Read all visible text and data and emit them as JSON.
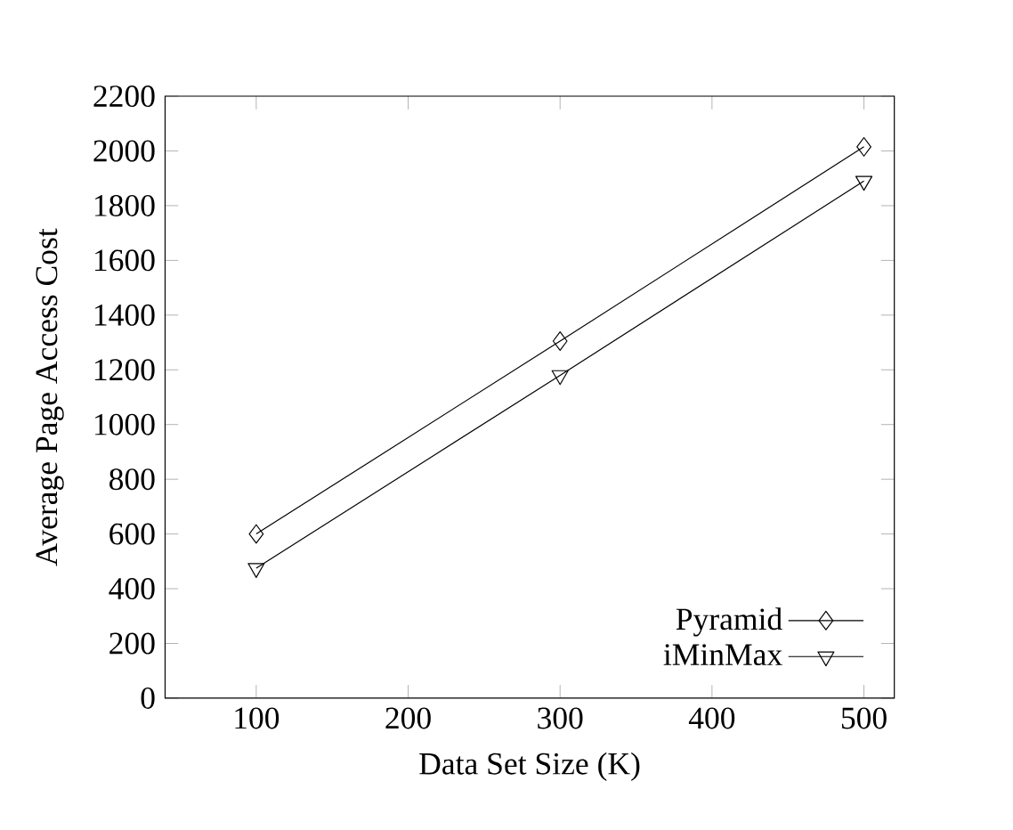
{
  "chart_data": {
    "type": "line",
    "xlabel": "Data Set Size (K)",
    "ylabel": "Average Page Access Cost",
    "x": [
      100,
      300,
      500
    ],
    "series": [
      {
        "name": "Pyramid",
        "color": "#000000",
        "marker": "diamond",
        "values": [
          600,
          1305,
          2015
        ]
      },
      {
        "name": "iMinMax",
        "color": "#000000",
        "marker": "triangle",
        "values": [
          475,
          1180,
          1890
        ]
      }
    ],
    "xlim": [
      40,
      520
    ],
    "xticks": [
      100,
      200,
      300,
      400,
      500
    ],
    "ylim": [
      0,
      2200
    ],
    "yticks": [
      0,
      200,
      400,
      600,
      800,
      1000,
      1200,
      1400,
      1600,
      1800,
      2000,
      2200
    ],
    "legend": "bottom right",
    "grid": false,
    "line_style": "solid"
  }
}
